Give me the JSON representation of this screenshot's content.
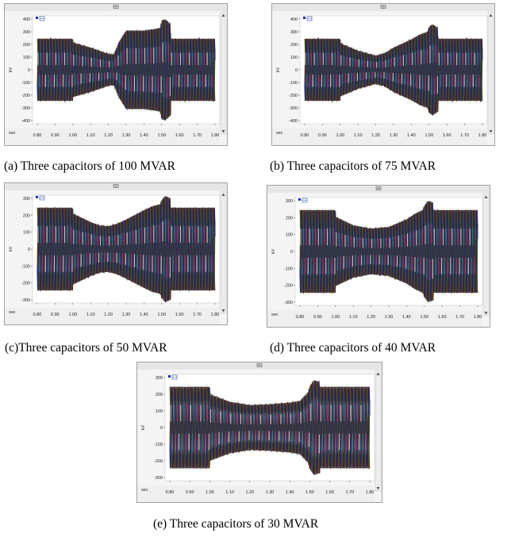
{
  "chart_data": [
    {
      "type": "line",
      "caption": "(a) Three capacitors of 100 MVAR",
      "xlabel": "sec",
      "ylabel": "kV",
      "xlim": [
        0.8,
        1.8
      ],
      "ylim": [
        -400,
        400
      ],
      "x_ticks": [
        0.8,
        0.9,
        1.0,
        1.1,
        1.2,
        1.3,
        1.4,
        1.5,
        1.6,
        1.7,
        1.8
      ],
      "x_tick_labels": [
        "0.80",
        "0.90",
        "1.00",
        "1.10",
        "1.20",
        "1.30",
        "1.40",
        "1.50",
        "1.60",
        "1.70",
        "1.80"
      ],
      "y_ticks": [
        400,
        300,
        200,
        100,
        0,
        -100,
        -200,
        -300,
        -400
      ],
      "y_tick_labels": [
        "400",
        "300",
        "200",
        "100",
        "0",
        "-100",
        "-200",
        "-300",
        "-400"
      ],
      "envelope": {
        "x": [
          0.8,
          1.0,
          1.001,
          1.1,
          1.2,
          1.23,
          1.26,
          1.3,
          1.4,
          1.45,
          1.49,
          1.5,
          1.52,
          1.55,
          1.551,
          1.6,
          1.7,
          1.8
        ],
        "amp": [
          245,
          245,
          215,
          175,
          125,
          120,
          220,
          310,
          310,
          320,
          330,
          390,
          400,
          360,
          245,
          245,
          245,
          245
        ]
      },
      "period": 0.0167
    },
    {
      "type": "line",
      "caption": "(b) Three capacitors of 75 MVAR",
      "xlabel": "sec",
      "ylabel": "kV",
      "xlim": [
        0.8,
        1.8
      ],
      "ylim": [
        -400,
        400
      ],
      "x_ticks": [
        0.8,
        0.9,
        1.0,
        1.1,
        1.2,
        1.3,
        1.4,
        1.5,
        1.6,
        1.7,
        1.8
      ],
      "x_tick_labels": [
        "0.80",
        "0.90",
        "1.00",
        "1.10",
        "1.20",
        "1.30",
        "1.40",
        "1.50",
        "1.60",
        "1.70",
        "1.80"
      ],
      "y_ticks": [
        400,
        300,
        200,
        100,
        0,
        -100,
        -200,
        -300,
        -400
      ],
      "y_tick_labels": [
        "400",
        "300",
        "200",
        "100",
        "0",
        "-100",
        "-200",
        "-300",
        "-400"
      ],
      "envelope": {
        "x": [
          0.8,
          1.0,
          1.001,
          1.1,
          1.2,
          1.25,
          1.3,
          1.4,
          1.45,
          1.49,
          1.5,
          1.52,
          1.55,
          1.551,
          1.6,
          1.7,
          1.8
        ],
        "amp": [
          245,
          245,
          210,
          150,
          110,
          130,
          175,
          240,
          280,
          300,
          340,
          360,
          330,
          245,
          245,
          245,
          245
        ]
      },
      "period": 0.0167
    },
    {
      "type": "line",
      "caption": "(c)Three capacitors of 50 MVAR",
      "xlabel": "sec",
      "ylabel": "kV",
      "xlim": [
        0.8,
        1.8
      ],
      "ylim": [
        -300,
        300
      ],
      "x_ticks": [
        0.8,
        0.9,
        1.0,
        1.1,
        1.2,
        1.3,
        1.4,
        1.5,
        1.6,
        1.7,
        1.8
      ],
      "x_tick_labels": [
        "0.80",
        "0.90",
        "1.00",
        "1.10",
        "1.20",
        "1.30",
        "1.40",
        "1.50",
        "1.60",
        "1.70",
        "1.80"
      ],
      "y_ticks": [
        300,
        200,
        100,
        0,
        -100,
        -200,
        -300
      ],
      "y_tick_labels": [
        "300",
        "200",
        "100",
        "0",
        "-100",
        "-200",
        "-300"
      ],
      "envelope": {
        "x": [
          0.8,
          1.0,
          1.001,
          1.1,
          1.15,
          1.2,
          1.25,
          1.3,
          1.4,
          1.45,
          1.49,
          1.5,
          1.52,
          1.55,
          1.551,
          1.6,
          1.7,
          1.8
        ],
        "amp": [
          245,
          245,
          210,
          160,
          140,
          135,
          150,
          175,
          230,
          255,
          265,
          290,
          315,
          300,
          245,
          245,
          245,
          245
        ]
      },
      "period": 0.0167
    },
    {
      "type": "line",
      "caption": "(d) Three capacitors of 40 MVAR",
      "xlabel": "sec",
      "ylabel": "kV",
      "xlim": [
        0.8,
        1.8
      ],
      "ylim": [
        -300,
        300
      ],
      "x_ticks": [
        0.8,
        0.9,
        1.0,
        1.1,
        1.2,
        1.3,
        1.4,
        1.5,
        1.6,
        1.7,
        1.8
      ],
      "x_tick_labels": [
        "0.80",
        "0.90",
        "1.00",
        "1.10",
        "1.20",
        "1.30",
        "1.40",
        "1.50",
        "1.60",
        "1.70",
        "1.80"
      ],
      "y_ticks": [
        300,
        200,
        100,
        0,
        -100,
        -200,
        -300
      ],
      "y_tick_labels": [
        "300",
        "200",
        "100",
        "0",
        "-100",
        "-200",
        "-300"
      ],
      "envelope": {
        "x": [
          0.8,
          1.0,
          1.001,
          1.1,
          1.2,
          1.3,
          1.4,
          1.45,
          1.49,
          1.5,
          1.52,
          1.55,
          1.551,
          1.6,
          1.7,
          1.8
        ],
        "amp": [
          245,
          245,
          205,
          155,
          135,
          145,
          190,
          225,
          245,
          270,
          300,
          290,
          245,
          245,
          245,
          245
        ]
      },
      "period": 0.0167
    },
    {
      "type": "line",
      "caption": "(e) Three capacitors of 30 MVAR",
      "xlabel": "sec",
      "ylabel": "kV",
      "xlim": [
        0.8,
        1.8
      ],
      "ylim": [
        -300,
        300
      ],
      "x_ticks": [
        0.8,
        0.9,
        1.0,
        1.1,
        1.2,
        1.3,
        1.4,
        1.5,
        1.6,
        1.7,
        1.8
      ],
      "x_tick_labels": [
        "0.80",
        "0.90",
        "1.00",
        "1.10",
        "1.20",
        "1.30",
        "1.40",
        "1.50",
        "1.60",
        "1.70",
        "1.80"
      ],
      "y_ticks": [
        300,
        200,
        100,
        0,
        -100,
        -200,
        -300
      ],
      "y_tick_labels": [
        "300",
        "200",
        "100",
        "0",
        "-100",
        "-200",
        "-300"
      ],
      "envelope": {
        "x": [
          0.8,
          1.0,
          1.001,
          1.1,
          1.2,
          1.3,
          1.4,
          1.45,
          1.49,
          1.5,
          1.52,
          1.55,
          1.551,
          1.6,
          1.7,
          1.8
        ],
        "amp": [
          245,
          245,
          200,
          155,
          135,
          140,
          150,
          160,
          210,
          250,
          285,
          275,
          245,
          245,
          245,
          245
        ]
      },
      "period": 0.0167
    }
  ],
  "colors": {
    "frame": "#a0a0a0",
    "titlebar": "#e6e6e6",
    "plot_bg": "#ffffff",
    "phase_a": "#6b1717",
    "phase_b": "#3d5f12",
    "phase_c": "#24246e",
    "highlight_a": "#e7c9a0",
    "highlight_b": "#2a8c6b",
    "highlight_c": "#b23c4c",
    "legend_marker": "#1a2fa6"
  },
  "icons": {
    "title_icon": "table-grid-icon",
    "legend_icon": "legend-grid-icon",
    "scroll_up": "scroll-up-arrow-icon",
    "scroll_down": "scroll-down-arrow-icon"
  }
}
